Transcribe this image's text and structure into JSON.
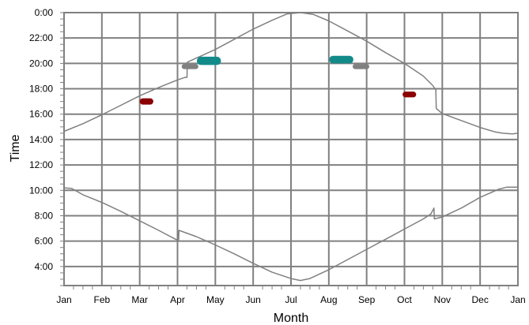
{
  "chart_data": {
    "type": "line",
    "title": "",
    "xlabel": "Month",
    "ylabel": "Time",
    "x_tick_labels": [
      "Jan",
      "Feb",
      "Mar",
      "Apr",
      "May",
      "Jun",
      "Jul",
      "Aug",
      "Sep",
      "Oct",
      "Nov",
      "Dec",
      "Jan"
    ],
    "y_tick_labels": [
      "4:00",
      "6:00",
      "8:00",
      "10:00",
      "12:00",
      "14:00",
      "16:00",
      "18:00",
      "20:00",
      "22:00",
      "0:00"
    ],
    "y_tick_values": [
      4,
      6,
      8,
      10,
      12,
      14,
      16,
      18,
      20,
      22,
      24
    ],
    "xlim": [
      0,
      12
    ],
    "ylim": [
      2.5,
      24
    ],
    "grid": true,
    "legend": "none",
    "colors": {
      "curve": "#808080",
      "grid": "#808080",
      "dark_red": "#8b0000",
      "teal": "#138a8a",
      "gray_marker": "#808080"
    },
    "series": [
      {
        "color_key": "curve",
        "x": [
          0,
          0.5,
          1,
          1.5,
          2,
          2.5,
          3,
          3.2,
          3.25,
          3.26,
          4,
          4.5,
          5,
          5.5,
          5.9,
          6.25,
          6.6,
          7,
          7.5,
          8,
          8.5,
          9,
          9.5,
          9.75,
          9.83,
          9.84,
          10,
          10.5,
          11,
          11.4,
          11.6,
          11.85,
          12
        ],
        "y": [
          14.65,
          15.25,
          15.95,
          16.7,
          17.45,
          18.1,
          18.7,
          18.9,
          18.9,
          20.1,
          21.1,
          21.9,
          22.7,
          23.4,
          23.9,
          24.0,
          23.85,
          23.35,
          22.55,
          21.75,
          20.85,
          20.0,
          19.0,
          18.25,
          17.9,
          16.45,
          16.05,
          15.5,
          14.95,
          14.6,
          14.5,
          14.45,
          14.5
        ]
      },
      {
        "color_key": "curve",
        "x": [
          0,
          0.2,
          0.5,
          1,
          1.5,
          2,
          2.5,
          2.95,
          3.0,
          3.03,
          3.04,
          3.5,
          4,
          4.5,
          5,
          5.5,
          6,
          6.25,
          6.5,
          7,
          7.5,
          8,
          8.5,
          9,
          9.5,
          9.7,
          9.78,
          9.79,
          10,
          10.5,
          11,
          11.5,
          11.7,
          12
        ],
        "y": [
          10.2,
          10.15,
          9.65,
          9.05,
          8.35,
          7.6,
          6.85,
          6.15,
          6.1,
          6.1,
          6.85,
          6.35,
          5.7,
          5.0,
          4.25,
          3.55,
          3.05,
          2.9,
          3.05,
          3.75,
          4.55,
          5.35,
          6.15,
          6.95,
          7.75,
          8.15,
          8.6,
          7.75,
          7.9,
          8.6,
          9.45,
          10.1,
          10.25,
          10.25
        ]
      }
    ],
    "markers": [
      {
        "color_key": "dark_red",
        "x": 2.18,
        "y": 17.0,
        "thickness": 0.5,
        "half_width": 0.18
      },
      {
        "color_key": "gray_marker",
        "x": 3.33,
        "y": 19.75,
        "thickness": 0.4,
        "half_width": 0.22
      },
      {
        "color_key": "teal",
        "x": 3.83,
        "y": 20.2,
        "thickness": 0.65,
        "half_width": 0.32
      },
      {
        "color_key": "teal",
        "x": 7.33,
        "y": 20.3,
        "thickness": 0.6,
        "half_width": 0.32
      },
      {
        "color_key": "gray_marker",
        "x": 7.85,
        "y": 19.75,
        "thickness": 0.4,
        "half_width": 0.22
      },
      {
        "color_key": "dark_red",
        "x": 9.13,
        "y": 17.55,
        "thickness": 0.45,
        "half_width": 0.18
      }
    ]
  }
}
